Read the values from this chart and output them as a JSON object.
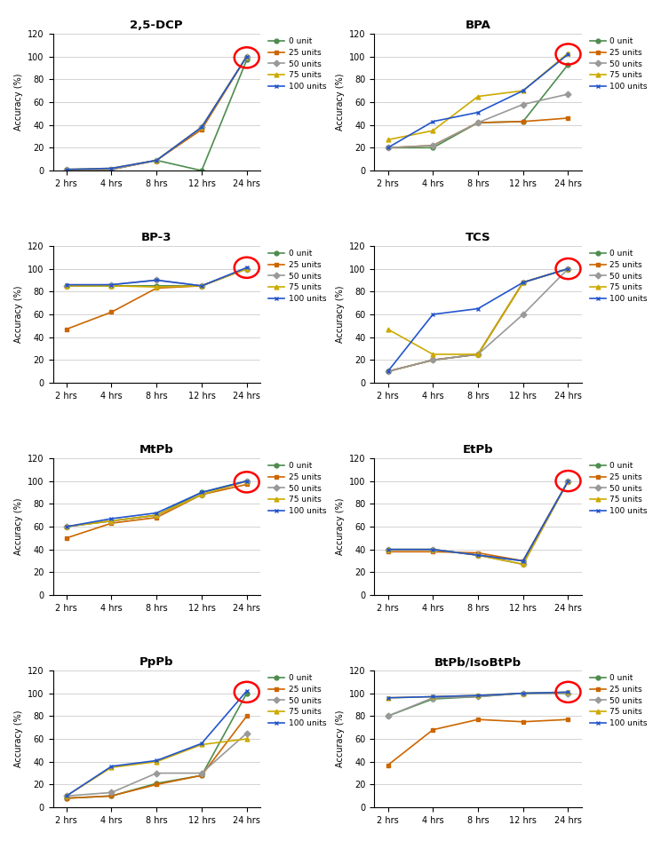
{
  "x_labels": [
    "2 hrs",
    "4 hrs",
    "8 hrs",
    "12 hrs",
    "24 hrs"
  ],
  "x_vals": [
    0,
    1,
    2,
    3,
    4
  ],
  "series_labels": [
    "0 unit",
    "25 units",
    "50 units",
    "75 units",
    "100 units"
  ],
  "series_colors": [
    "#4e8c4e",
    "#cc6600",
    "#999999",
    "#ccaa00",
    "#2255cc"
  ],
  "plots": [
    {
      "title": "2,5-DCP",
      "data": [
        [
          1,
          1,
          9,
          0,
          97
        ],
        [
          1,
          1,
          9,
          36,
          100
        ],
        [
          1,
          1,
          9,
          38,
          100
        ],
        [
          1,
          2,
          9,
          38,
          100
        ],
        [
          1,
          2,
          9,
          38,
          100
        ]
      ],
      "circle_at": [
        4,
        99
      ]
    },
    {
      "title": "BPA",
      "data": [
        [
          20,
          20,
          42,
          43,
          93
        ],
        [
          20,
          22,
          42,
          43,
          46
        ],
        [
          20,
          22,
          42,
          58,
          67
        ],
        [
          27,
          35,
          65,
          70,
          103
        ],
        [
          20,
          43,
          51,
          70,
          102
        ]
      ],
      "circle_at": [
        4,
        102
      ]
    },
    {
      "title": "BP-3",
      "data": [
        [
          85,
          85,
          85,
          85,
          100
        ],
        [
          47,
          62,
          83,
          85,
          100
        ],
        [
          85,
          86,
          90,
          85,
          100
        ],
        [
          85,
          85,
          84,
          85,
          100
        ],
        [
          86,
          86,
          90,
          85,
          101
        ]
      ],
      "circle_at": [
        4,
        101
      ]
    },
    {
      "title": "TCS",
      "data": [
        [
          10,
          20,
          25,
          88,
          100
        ],
        [
          10,
          20,
          25,
          88,
          100
        ],
        [
          10,
          20,
          25,
          60,
          100
        ],
        [
          47,
          25,
          25,
          88,
          100
        ],
        [
          10,
          60,
          65,
          88,
          100
        ]
      ],
      "circle_at": [
        4,
        100
      ]
    },
    {
      "title": "MtPb",
      "data": [
        [
          60,
          65,
          70,
          90,
          100
        ],
        [
          50,
          63,
          68,
          88,
          97
        ],
        [
          60,
          65,
          70,
          88,
          100
        ],
        [
          60,
          65,
          70,
          88,
          100
        ],
        [
          60,
          67,
          72,
          90,
          100
        ]
      ],
      "circle_at": [
        4,
        99
      ]
    },
    {
      "title": "EtPb",
      "data": [
        [
          40,
          40,
          35,
          30,
          100
        ],
        [
          38,
          38,
          37,
          30,
          100
        ],
        [
          40,
          40,
          35,
          27,
          100
        ],
        [
          40,
          40,
          35,
          27,
          100
        ],
        [
          40,
          40,
          35,
          30,
          100
        ]
      ],
      "circle_at": [
        4,
        100
      ]
    },
    {
      "title": "PpPb",
      "data": [
        [
          8,
          10,
          21,
          28,
          100
        ],
        [
          8,
          10,
          20,
          28,
          80
        ],
        [
          10,
          13,
          30,
          30,
          65
        ],
        [
          10,
          35,
          40,
          55,
          60
        ],
        [
          10,
          36,
          41,
          56,
          102
        ]
      ],
      "circle_at": [
        4,
        101
      ]
    },
    {
      "title": "BtPb/IsoBtPb",
      "data": [
        [
          80,
          95,
          97,
          100,
          100
        ],
        [
          37,
          68,
          77,
          75,
          77
        ],
        [
          80,
          96,
          97,
          100,
          100
        ],
        [
          96,
          97,
          98,
          100,
          101
        ],
        [
          96,
          97,
          98,
          100,
          101
        ]
      ],
      "circle_at": [
        4,
        101
      ]
    }
  ],
  "ylim": [
    0,
    120
  ],
  "yticks": [
    0,
    20,
    40,
    60,
    80,
    100,
    120
  ],
  "background_color": "#ffffff",
  "circle_color": "red"
}
